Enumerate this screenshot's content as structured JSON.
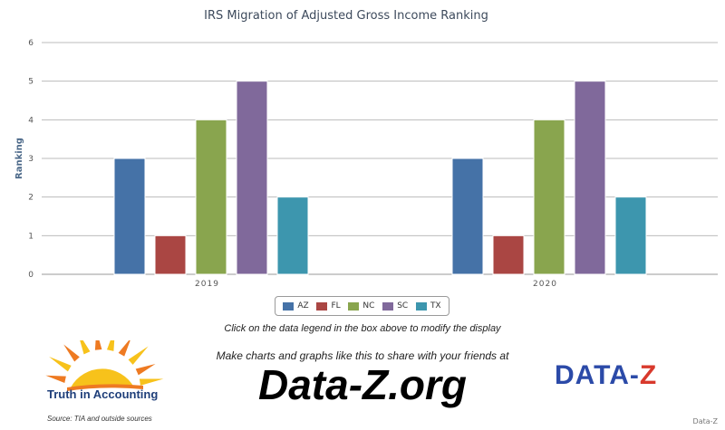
{
  "chart_data": {
    "type": "bar",
    "title": "IRS Migration of Adjusted Gross Income Ranking",
    "xlabel": "",
    "ylabel": "Ranking",
    "ylim": [
      0,
      6
    ],
    "yticks": [
      0,
      1,
      2,
      3,
      4,
      5,
      6
    ],
    "grid": true,
    "legend_position": "bottom-center",
    "categories": [
      "2019",
      "2020"
    ],
    "series": [
      {
        "name": "AZ",
        "color": "#4572a7",
        "values": [
          3,
          3
        ]
      },
      {
        "name": "FL",
        "color": "#aa4643",
        "values": [
          1,
          1
        ]
      },
      {
        "name": "NC",
        "color": "#89a54e",
        "values": [
          4,
          4
        ]
      },
      {
        "name": "SC",
        "color": "#80699b",
        "values": [
          5,
          5
        ]
      },
      {
        "name": "TX",
        "color": "#3d96ae",
        "values": [
          2,
          2
        ]
      }
    ]
  },
  "hint_text": "Click on the data legend in the box above to modify the display",
  "promo_text": "Make charts and graphs like this to share with your friends at",
  "site_text": "Data-Z.org",
  "tia_logo_text": "Truth in Accounting",
  "source_text": "Source: TIA and outside sources",
  "dz_logo": {
    "part1": "DATA-",
    "part2": "Z"
  },
  "watermark_text": "Data-Z",
  "colors": {
    "sun_yellow": "#f7c21b",
    "sun_orange": "#ee7a22",
    "dz_blue": "#2b4aa8",
    "dz_red": "#d8392c"
  }
}
